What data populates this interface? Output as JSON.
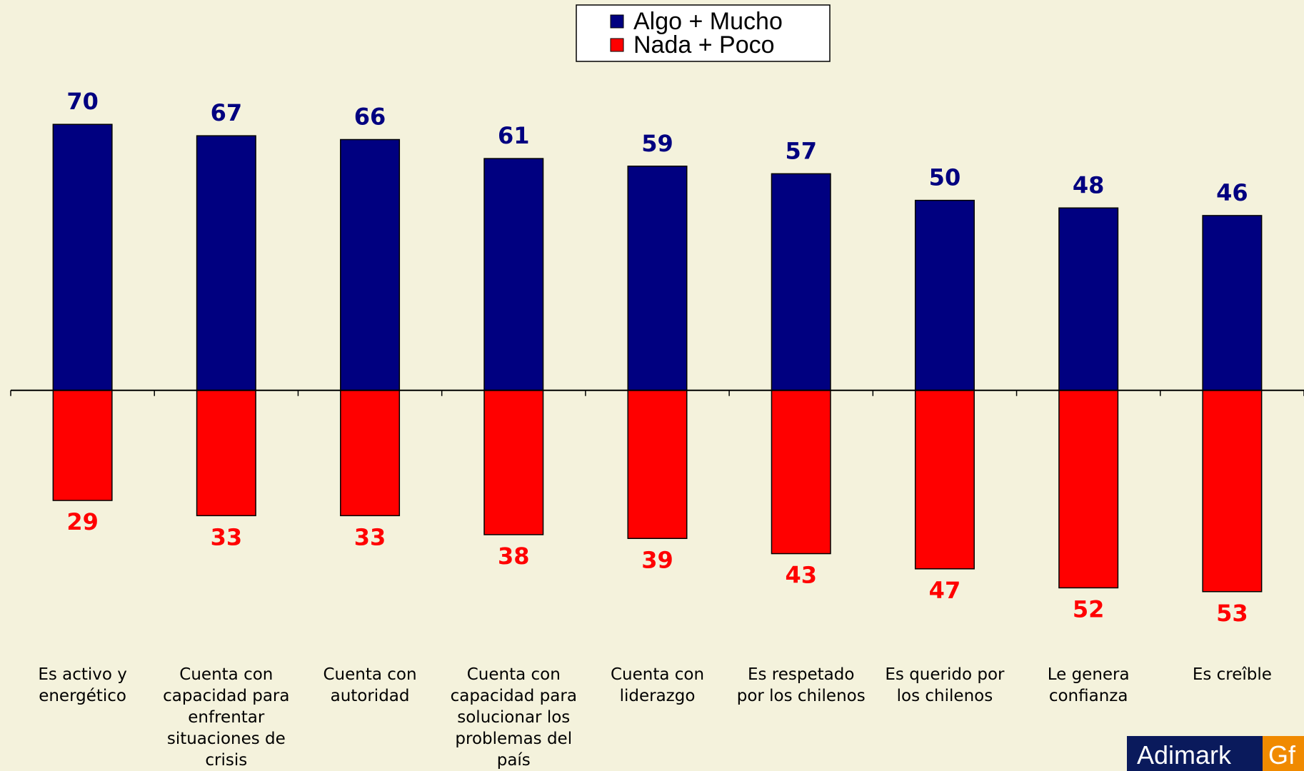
{
  "chart_data": {
    "type": "bar",
    "categories": [
      "Es activo y energético",
      "Cuenta con capacidad para enfrentar situaciones de crisis",
      "Cuenta con autoridad",
      "Cuenta con capacidad para solucionar los problemas del país",
      "Cuenta con liderazgo",
      "Es respetado por los chilenos",
      "Es querido por los chilenos",
      "Le genera confianza",
      "Es creîble"
    ],
    "series": [
      {
        "name": "Algo + Mucho",
        "color": "#000080",
        "values": [
          70,
          67,
          66,
          61,
          59,
          57,
          50,
          48,
          46
        ]
      },
      {
        "name": "Nada + Poco",
        "color": "#ff0000",
        "values": [
          -29,
          -33,
          -33,
          -38,
          -39,
          -43,
          -47,
          -52,
          -53
        ],
        "value_labels": [
          "29",
          "33",
          "33",
          "38",
          "39",
          "43",
          "47",
          "52",
          "53"
        ]
      }
    ],
    "ylim": [
      -60,
      80
    ],
    "legend": "top"
  },
  "logo": {
    "left": "Adimark",
    "right": "Gf"
  }
}
